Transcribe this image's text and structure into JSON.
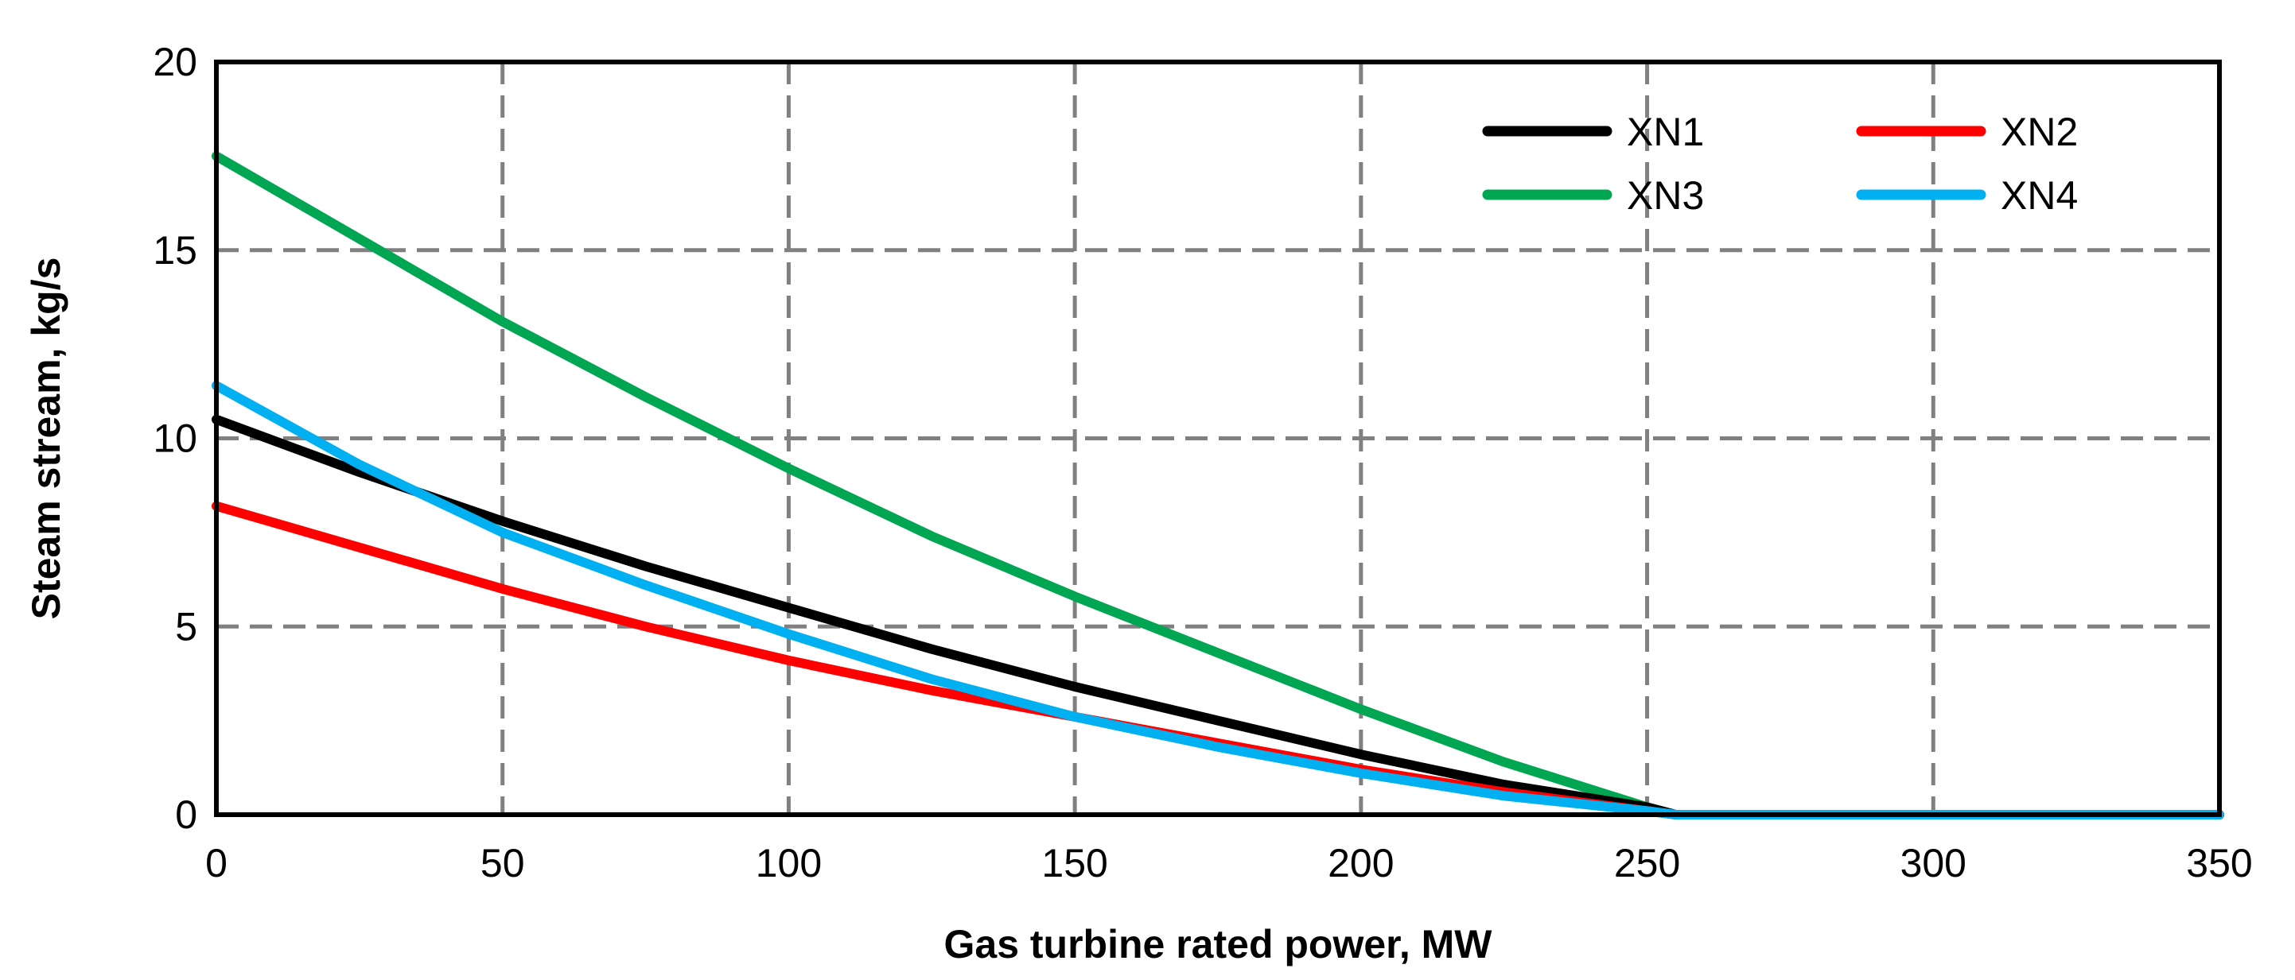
{
  "chart_data": {
    "type": "line",
    "title": "",
    "xlabel": "Gas turbine rated power, MW",
    "ylabel": "Steam stream, kg/s",
    "xlim": [
      0,
      350
    ],
    "ylim": [
      0,
      20
    ],
    "xticks": [
      0,
      50,
      100,
      150,
      200,
      250,
      300,
      350
    ],
    "yticks": [
      0,
      5,
      10,
      15,
      20
    ],
    "xtick_labels": [
      "0",
      "50",
      "100",
      "150",
      "200",
      "250",
      "300",
      "350"
    ],
    "ytick_labels": [
      "0",
      "5",
      "10",
      "15",
      "20"
    ],
    "grid": true,
    "legend_position": "top-right",
    "series": [
      {
        "name": "XN1",
        "color": "#000000",
        "x": [
          0,
          25,
          50,
          75,
          100,
          125,
          150,
          175,
          200,
          225,
          250,
          255,
          275,
          300,
          325,
          350
        ],
        "y": [
          10.5,
          9.1,
          7.8,
          6.6,
          5.5,
          4.4,
          3.4,
          2.5,
          1.6,
          0.8,
          0.2,
          0.0,
          0.0,
          0.0,
          0.0,
          0.0
        ]
      },
      {
        "name": "XN2",
        "color": "#ff0000",
        "x": [
          0,
          25,
          50,
          75,
          100,
          125,
          150,
          175,
          200,
          225,
          250,
          255,
          275,
          300,
          325,
          350
        ],
        "y": [
          8.2,
          7.1,
          6.0,
          5.0,
          4.1,
          3.3,
          2.6,
          1.9,
          1.2,
          0.6,
          0.1,
          0.0,
          0.0,
          0.0,
          0.0,
          0.0
        ]
      },
      {
        "name": "XN3",
        "color": "#00a651",
        "x": [
          0,
          25,
          50,
          75,
          100,
          125,
          150,
          175,
          200,
          225,
          250,
          255,
          275,
          300,
          325,
          350
        ],
        "y": [
          17.5,
          15.3,
          13.1,
          11.1,
          9.2,
          7.4,
          5.8,
          4.3,
          2.8,
          1.4,
          0.2,
          0.0,
          0.0,
          0.0,
          0.0,
          0.0
        ]
      },
      {
        "name": "XN4",
        "color": "#00b0f0",
        "x": [
          0,
          25,
          50,
          75,
          100,
          125,
          150,
          175,
          200,
          225,
          250,
          255,
          275,
          300,
          325,
          350
        ],
        "y": [
          11.4,
          9.3,
          7.5,
          6.1,
          4.8,
          3.6,
          2.6,
          1.8,
          1.1,
          0.5,
          0.1,
          0.0,
          0.0,
          0.0,
          0.0,
          0.0
        ]
      }
    ]
  }
}
